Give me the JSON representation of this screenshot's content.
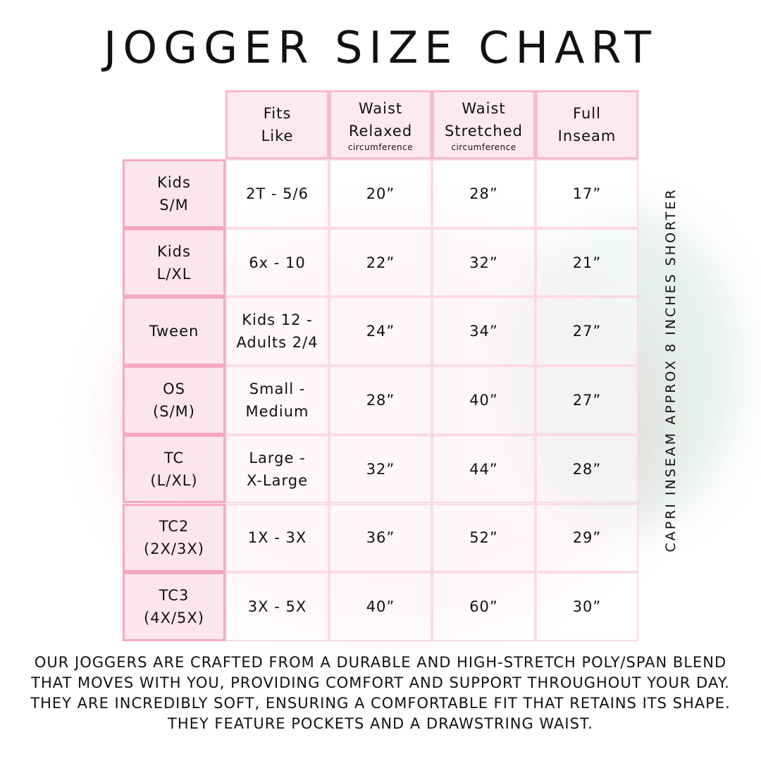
{
  "title": "JOGGER SIZE CHART",
  "headers": [
    {
      "label": "Fits\nLike",
      "sub": ""
    },
    {
      "label": "Waist\nRelaxed",
      "sub": "circumference"
    },
    {
      "label": "Waist\nStretched",
      "sub": "circumference"
    },
    {
      "label": "Full\nInseam",
      "sub": ""
    }
  ],
  "rows": [
    {
      "size": "Kids\nS/M",
      "fits": "2T - 5/6",
      "relaxed": "20”",
      "stretched": "28”",
      "inseam": "17”"
    },
    {
      "size": "Kids\nL/XL",
      "fits": "6x - 10",
      "relaxed": "22”",
      "stretched": "32”",
      "inseam": "21”"
    },
    {
      "size": "Tween",
      "fits": "Kids 12 -\nAdults 2/4",
      "relaxed": "24”",
      "stretched": "34”",
      "inseam": "27”"
    },
    {
      "size": "OS\n(S/M)",
      "fits": "Small -\nMedium",
      "relaxed": "28”",
      "stretched": "40”",
      "inseam": "27”"
    },
    {
      "size": "TC\n(L/XL)",
      "fits": "Large -\nX-Large",
      "relaxed": "32”",
      "stretched": "44”",
      "inseam": "28”"
    },
    {
      "size": "TC2\n(2X/3X)",
      "fits": "1X - 3X",
      "relaxed": "36”",
      "stretched": "52”",
      "inseam": "29”"
    },
    {
      "size": "TC3\n(4X/5X)",
      "fits": "3X - 5X",
      "relaxed": "40”",
      "stretched": "60”",
      "inseam": "30”"
    }
  ],
  "side_note": "CAPRI INSEAM APPROX 8 INCHES SHORTER",
  "description": "Our joggers are crafted from a durable and high-stretch poly/span blend that moves with you, providing comfort and support throughout your day. They are incredibly soft, ensuring a comfortable fit that retains its shape. They feature pockets and a drawstring waist.",
  "colors": {
    "header_bg": "#fdeaf0",
    "header_border": "#f7bccc",
    "row_header_border": "#f3a9c0"
  }
}
